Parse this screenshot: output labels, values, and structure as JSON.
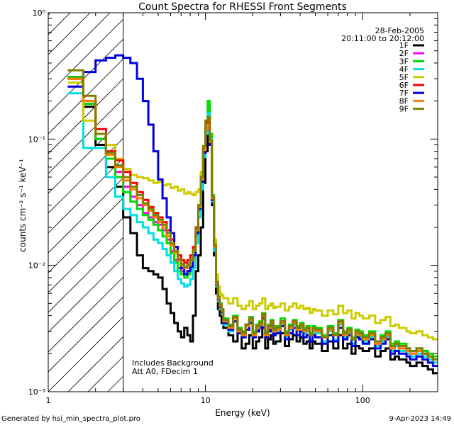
{
  "chart_data": {
    "type": "line",
    "title": "Count Spectra for RHESSI Front Segments",
    "xlabel": "Energy (keV)",
    "ylabel": "counts cm⁻² s⁻¹ keV⁻¹",
    "x_scale": "log",
    "y_scale": "log",
    "xlim": [
      1,
      300
    ],
    "ylim": [
      0.001,
      1
    ],
    "x_ticks": [
      {
        "value": 1,
        "label": "1"
      },
      {
        "value": 10,
        "label": "10"
      },
      {
        "value": 100,
        "label": "100"
      }
    ],
    "y_ticks": [
      {
        "value": 1,
        "label": "10⁰"
      },
      {
        "value": 0.1,
        "label": "10⁻¹"
      },
      {
        "value": 0.01,
        "label": "10⁻²"
      },
      {
        "value": 0.001,
        "label": "10⁻³"
      }
    ],
    "date": "28-Feb-2005",
    "time_range": "20:11:00 to 20:12:00",
    "annotation_lines": [
      "Includes Background",
      "Att A0, FDecim 1"
    ],
    "attenuated_energy_cutoff_kev": 3,
    "energy_edges": [
      1.33,
      1.67,
      2.0,
      2.33,
      2.67,
      3.0,
      3.33,
      3.67,
      4.0,
      4.33,
      4.67,
      5.0,
      5.33,
      5.67,
      6.0,
      6.33,
      6.67,
      7.0,
      7.33,
      7.67,
      8.0,
      8.33,
      8.67,
      9.0,
      9.33,
      9.67,
      10.0,
      10.33,
      10.67,
      11.0,
      11.33,
      11.67,
      12.0,
      12.33,
      12.67,
      13.0,
      14.0,
      15.0,
      16.0,
      17.0,
      18.0,
      19.0,
      20.0,
      21.0,
      22.0,
      23.0,
      24.0,
      25.0,
      26.0,
      27.0,
      28.0,
      30.0,
      32.0,
      34.0,
      36.0,
      38.0,
      40.0,
      42.0,
      44.0,
      46.0,
      48.0,
      50.0,
      55.0,
      60.0,
      65.0,
      70.0,
      75.0,
      80.0,
      85.0,
      90.0,
      95.0,
      100.0,
      110.0,
      120.0,
      130.0,
      140.0,
      150.0,
      160.0,
      170.0,
      180.0,
      190.0,
      200.0,
      220.0,
      240.0,
      260.0,
      280.0,
      300.0
    ],
    "series": [
      {
        "name": "1F",
        "color": "#000000",
        "values": [
          0.31,
          0.18,
          0.09,
          0.06,
          0.042,
          0.024,
          0.018,
          0.012,
          0.0095,
          0.009,
          0.0085,
          0.008,
          0.0065,
          0.005,
          0.0042,
          0.0035,
          0.003,
          0.0027,
          0.0032,
          0.0028,
          0.0025,
          0.004,
          0.009,
          0.012,
          0.02,
          0.045,
          0.08,
          0.12,
          0.09,
          0.03,
          0.012,
          0.006,
          0.0045,
          0.004,
          0.0035,
          0.0032,
          0.0028,
          0.0025,
          0.003,
          0.0022,
          0.0024,
          0.0028,
          0.0022,
          0.0025,
          0.0027,
          0.0032,
          0.0022,
          0.0026,
          0.0028,
          0.0024,
          0.0025,
          0.0029,
          0.0023,
          0.0026,
          0.0028,
          0.0025,
          0.0027,
          0.0024,
          0.0025,
          0.0022,
          0.0025,
          0.0024,
          0.0021,
          0.0025,
          0.0022,
          0.0028,
          0.0022,
          0.0024,
          0.002,
          0.0023,
          0.0022,
          0.0021,
          0.0022,
          0.0019,
          0.0021,
          0.0022,
          0.0018,
          0.0019,
          0.0018,
          0.0018,
          0.0017,
          0.0016,
          0.0017,
          0.0016,
          0.0015,
          0.0014
        ]
      },
      {
        "name": "2F",
        "color": "#ff00ff",
        "values": [
          0.31,
          0.19,
          0.1,
          0.07,
          0.055,
          0.042,
          0.035,
          0.03,
          0.026,
          0.024,
          0.022,
          0.021,
          0.019,
          0.016,
          0.013,
          0.011,
          0.0095,
          0.009,
          0.0085,
          0.009,
          0.0098,
          0.0115,
          0.018,
          0.028,
          0.048,
          0.085,
          0.13,
          0.15,
          0.1,
          0.035,
          0.014,
          0.0072,
          0.0055,
          0.0048,
          0.0044,
          0.0036,
          0.0032,
          0.0038,
          0.003,
          0.0028,
          0.0033,
          0.0037,
          0.0028,
          0.0032,
          0.0034,
          0.004,
          0.0028,
          0.0032,
          0.0035,
          0.003,
          0.0031,
          0.0035,
          0.0028,
          0.0032,
          0.0035,
          0.0031,
          0.0033,
          0.003,
          0.0031,
          0.0028,
          0.0031,
          0.003,
          0.0027,
          0.0031,
          0.0028,
          0.0035,
          0.0028,
          0.003,
          0.0026,
          0.0029,
          0.0028,
          0.0026,
          0.0028,
          0.0024,
          0.0026,
          0.0028,
          0.0022,
          0.0024,
          0.0022,
          0.0022,
          0.0021,
          0.002,
          0.0021,
          0.002,
          0.0019,
          0.0018
        ]
      },
      {
        "name": "3F",
        "color": "#00dd00",
        "values": [
          0.31,
          0.19,
          0.1,
          0.07,
          0.05,
          0.038,
          0.032,
          0.028,
          0.025,
          0.023,
          0.021,
          0.019,
          0.017,
          0.015,
          0.0125,
          0.0105,
          0.009,
          0.0085,
          0.008,
          0.0085,
          0.0093,
          0.011,
          0.017,
          0.027,
          0.045,
          0.082,
          0.13,
          0.2,
          0.11,
          0.036,
          0.015,
          0.0073,
          0.0057,
          0.005,
          0.0045,
          0.0038,
          0.0034,
          0.004,
          0.0032,
          0.003,
          0.0034,
          0.0039,
          0.003,
          0.0034,
          0.0036,
          0.0042,
          0.003,
          0.0034,
          0.0037,
          0.0032,
          0.0033,
          0.0038,
          0.003,
          0.0034,
          0.0037,
          0.0033,
          0.0035,
          0.0032,
          0.0033,
          0.0029,
          0.0033,
          0.0032,
          0.0028,
          0.0033,
          0.0029,
          0.0037,
          0.003,
          0.0032,
          0.0027,
          0.0031,
          0.003,
          0.0028,
          0.003,
          0.0025,
          0.0028,
          0.003,
          0.0024,
          0.0025,
          0.0024,
          0.0024,
          0.0022,
          0.0021,
          0.0022,
          0.0021,
          0.002,
          0.0019
        ]
      },
      {
        "name": "4F",
        "color": "#00e0e0",
        "values": [
          0.23,
          0.085,
          0.085,
          0.05,
          0.035,
          0.028,
          0.025,
          0.022,
          0.02,
          0.018,
          0.016,
          0.015,
          0.0135,
          0.012,
          0.0105,
          0.009,
          0.0078,
          0.0072,
          0.0068,
          0.007,
          0.0078,
          0.0095,
          0.015,
          0.024,
          0.04,
          0.072,
          0.11,
          0.16,
          0.1,
          0.032,
          0.013,
          0.0068,
          0.0052,
          0.0045,
          0.0041,
          0.0034,
          0.003,
          0.0036,
          0.0029,
          0.0027,
          0.0031,
          0.0036,
          0.0027,
          0.0031,
          0.0033,
          0.0039,
          0.0027,
          0.0031,
          0.0034,
          0.0029,
          0.003,
          0.0034,
          0.0027,
          0.0031,
          0.0034,
          0.003,
          0.0032,
          0.0029,
          0.003,
          0.0026,
          0.003,
          0.0029,
          0.0025,
          0.003,
          0.0026,
          0.0034,
          0.0027,
          0.0029,
          0.0024,
          0.0028,
          0.0027,
          0.0025,
          0.0027,
          0.0023,
          0.0025,
          0.0027,
          0.0021,
          0.0023,
          0.0021,
          0.0021,
          0.002,
          0.0019,
          0.002,
          0.0019,
          0.0018,
          0.0017
        ]
      },
      {
        "name": "5F",
        "color": "#cccc00",
        "values": [
          0.28,
          0.14,
          0.11,
          0.09,
          0.07,
          0.058,
          0.052,
          0.05,
          0.049,
          0.047,
          0.045,
          0.046,
          0.043,
          0.044,
          0.041,
          0.042,
          0.039,
          0.04,
          0.037,
          0.038,
          0.037,
          0.036,
          0.038,
          0.04,
          0.055,
          0.085,
          0.13,
          0.14,
          0.09,
          0.035,
          0.016,
          0.0085,
          0.0068,
          0.006,
          0.0058,
          0.0055,
          0.005,
          0.0055,
          0.0048,
          0.0045,
          0.0048,
          0.0052,
          0.0045,
          0.0048,
          0.005,
          0.0055,
          0.0045,
          0.0048,
          0.005,
          0.0046,
          0.0047,
          0.005,
          0.0044,
          0.0047,
          0.005,
          0.0046,
          0.0048,
          0.0045,
          0.0046,
          0.0042,
          0.0045,
          0.0044,
          0.004,
          0.0044,
          0.0041,
          0.0048,
          0.0042,
          0.0044,
          0.0038,
          0.0042,
          0.004,
          0.0038,
          0.004,
          0.0035,
          0.0037,
          0.0039,
          0.0033,
          0.0034,
          0.0032,
          0.0032,
          0.003,
          0.0029,
          0.003,
          0.0028,
          0.0027,
          0.0026
        ]
      },
      {
        "name": "6F",
        "color": "#ff0000",
        "values": [
          0.3,
          0.2,
          0.12,
          0.08,
          0.068,
          0.055,
          0.045,
          0.038,
          0.033,
          0.029,
          0.026,
          0.024,
          0.022,
          0.019,
          0.016,
          0.014,
          0.012,
          0.011,
          0.0105,
          0.011,
          0.012,
          0.014,
          0.02,
          0.03,
          0.05,
          0.085,
          0.12,
          0.14,
          0.095,
          0.034,
          0.014,
          0.0072,
          0.0056,
          0.0048,
          0.0044,
          0.0037,
          0.0033,
          0.0039,
          0.0031,
          0.0029,
          0.0034,
          0.0038,
          0.0029,
          0.0033,
          0.0035,
          0.0041,
          0.0029,
          0.0033,
          0.0036,
          0.0031,
          0.0032,
          0.0036,
          0.0029,
          0.0033,
          0.0036,
          0.0032,
          0.0034,
          0.0031,
          0.0032,
          0.0028,
          0.0032,
          0.0031,
          0.0027,
          0.0032,
          0.0028,
          0.0036,
          0.0029,
          0.0031,
          0.0026,
          0.003,
          0.0029,
          0.0027,
          0.0029,
          0.0025,
          0.0027,
          0.0029,
          0.0023,
          0.0024,
          0.0023,
          0.0023,
          0.0022,
          0.0021,
          0.0022,
          0.002,
          0.0019,
          0.0018
        ]
      },
      {
        "name": "7F",
        "color": "#0000dd",
        "values": [
          0.26,
          0.34,
          0.42,
          0.44,
          0.46,
          0.44,
          0.4,
          0.3,
          0.2,
          0.13,
          0.08,
          0.048,
          0.034,
          0.024,
          0.018,
          0.014,
          0.011,
          0.0095,
          0.0085,
          0.009,
          0.0098,
          0.012,
          0.018,
          0.028,
          0.046,
          0.078,
          0.12,
          0.13,
          0.09,
          0.033,
          0.014,
          0.0071,
          0.0054,
          0.0047,
          0.0043,
          0.0035,
          0.0031,
          0.0036,
          0.0029,
          0.0027,
          0.0031,
          0.0035,
          0.0027,
          0.003,
          0.0032,
          0.0038,
          0.0027,
          0.003,
          0.0033,
          0.0028,
          0.0029,
          0.0033,
          0.0026,
          0.0029,
          0.0032,
          0.0028,
          0.003,
          0.0027,
          0.0028,
          0.0025,
          0.0028,
          0.0027,
          0.0024,
          0.0028,
          0.0025,
          0.0032,
          0.0026,
          0.0028,
          0.0023,
          0.0027,
          0.0026,
          0.0024,
          0.0026,
          0.0022,
          0.0024,
          0.0026,
          0.002,
          0.0021,
          0.002,
          0.002,
          0.0019,
          0.0018,
          0.0019,
          0.0018,
          0.0017,
          0.0016
        ]
      },
      {
        "name": "8F",
        "color": "#ff8000",
        "values": [
          0.3,
          0.2,
          0.11,
          0.075,
          0.06,
          0.047,
          0.04,
          0.034,
          0.03,
          0.027,
          0.024,
          0.022,
          0.02,
          0.017,
          0.0145,
          0.0125,
          0.011,
          0.01,
          0.0095,
          0.01,
          0.011,
          0.013,
          0.019,
          0.029,
          0.048,
          0.082,
          0.12,
          0.13,
          0.095,
          0.034,
          0.014,
          0.0072,
          0.0055,
          0.0048,
          0.0044,
          0.0036,
          0.0032,
          0.0038,
          0.003,
          0.0028,
          0.0033,
          0.0037,
          0.0028,
          0.0032,
          0.0034,
          0.004,
          0.0028,
          0.0032,
          0.0035,
          0.003,
          0.0031,
          0.0035,
          0.0028,
          0.0032,
          0.0035,
          0.0031,
          0.0033,
          0.003,
          0.0031,
          0.0028,
          0.0031,
          0.003,
          0.0027,
          0.0031,
          0.0028,
          0.0035,
          0.0028,
          0.003,
          0.0026,
          0.0029,
          0.0028,
          0.0026,
          0.0028,
          0.0024,
          0.0026,
          0.0028,
          0.0022,
          0.0024,
          0.0022,
          0.0022,
          0.0021,
          0.002,
          0.0021,
          0.002,
          0.0019,
          0.0018
        ]
      },
      {
        "name": "9F",
        "color": "#808000",
        "values": [
          0.35,
          0.22,
          0.11,
          0.078,
          0.062,
          0.05,
          0.042,
          0.036,
          0.031,
          0.028,
          0.025,
          0.023,
          0.021,
          0.018,
          0.015,
          0.013,
          0.0112,
          0.0102,
          0.0097,
          0.0102,
          0.0112,
          0.0132,
          0.0195,
          0.03,
          0.05,
          0.088,
          0.14,
          0.15,
          0.098,
          0.035,
          0.0145,
          0.0074,
          0.0056,
          0.0049,
          0.0045,
          0.0037,
          0.0033,
          0.0039,
          0.0031,
          0.0029,
          0.0034,
          0.0038,
          0.0029,
          0.0033,
          0.0035,
          0.0041,
          0.0029,
          0.0033,
          0.0036,
          0.0031,
          0.0032,
          0.0036,
          0.0029,
          0.0033,
          0.0036,
          0.0032,
          0.0034,
          0.0031,
          0.0032,
          0.0028,
          0.0032,
          0.0031,
          0.0027,
          0.0032,
          0.0028,
          0.0036,
          0.0029,
          0.0031,
          0.0026,
          0.003,
          0.0029,
          0.0027,
          0.0029,
          0.0025,
          0.0027,
          0.0029,
          0.0023,
          0.0024,
          0.0023,
          0.0023,
          0.0022,
          0.0021,
          0.0022,
          0.002,
          0.0019,
          0.0018
        ]
      }
    ]
  },
  "footer": {
    "generated_by": "Generated by hsi_min_spectra_plot.pro",
    "timestamp": "9-Apr-2023 14:49"
  }
}
